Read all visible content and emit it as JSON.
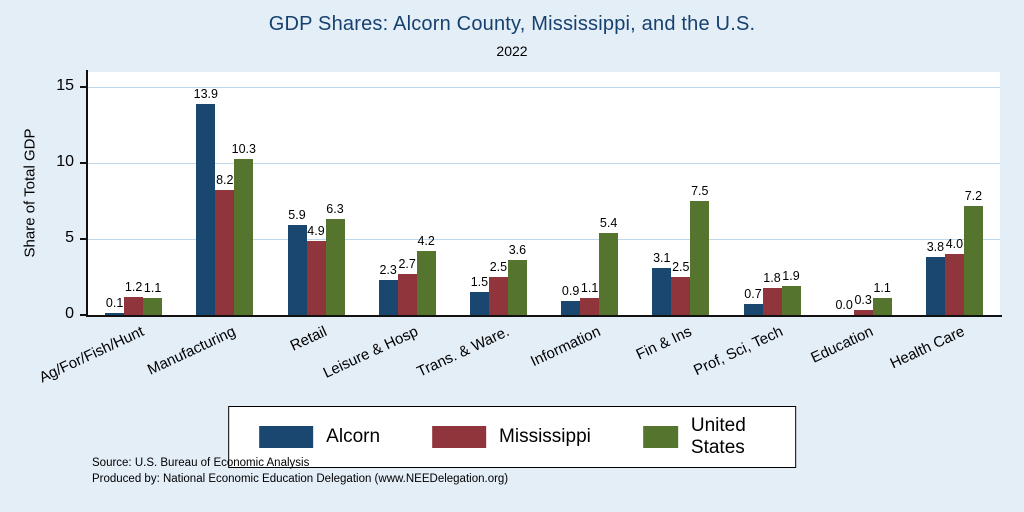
{
  "title": "GDP Shares: Alcorn County, Mississippi, and the U.S.",
  "subtitle": "2022",
  "ylabel": "Share of Total GDP",
  "footer": {
    "line1": "Source: U.S. Bureau of Economic Analysis",
    "line2": "Produced by: National Economic Education Delegation (www.NEEDelegation.org)"
  },
  "colors": {
    "background": "#e4eef7",
    "plot_background": "#ffffff",
    "gridline": "#bdd7ec",
    "title": "#16406f",
    "alcorn": "#1a476f",
    "mississippi": "#90353b",
    "united_states": "#55752f"
  },
  "chart_data": {
    "type": "bar",
    "title": "GDP Shares: Alcorn County, Mississippi, and the U.S.",
    "subtitle": "2022",
    "xlabel": "",
    "ylabel": "Share of Total GDP",
    "ylim": [
      0,
      16
    ],
    "yticks": [
      0,
      5,
      10,
      15
    ],
    "grid": true,
    "legend_position": "bottom",
    "categories": [
      "Ag/For/Fish/Hunt",
      "Manufacturing",
      "Retail",
      "Leisure & Hosp",
      "Trans. & Ware.",
      "Information",
      "Fin & Ins",
      "Prof, Sci, Tech",
      "Education",
      "Health Care"
    ],
    "series": [
      {
        "name": "Alcorn",
        "color": "#1a476f",
        "values": [
          0.1,
          13.9,
          5.9,
          2.3,
          1.5,
          0.9,
          3.1,
          0.7,
          0.0,
          3.8
        ]
      },
      {
        "name": "Mississippi",
        "color": "#90353b",
        "values": [
          1.2,
          8.2,
          4.9,
          2.7,
          2.5,
          1.1,
          2.5,
          1.8,
          0.3,
          4.0
        ]
      },
      {
        "name": "United States",
        "color": "#55752f",
        "values": [
          1.1,
          10.3,
          6.3,
          4.2,
          3.6,
          5.4,
          7.5,
          1.9,
          1.1,
          7.2
        ]
      }
    ]
  }
}
